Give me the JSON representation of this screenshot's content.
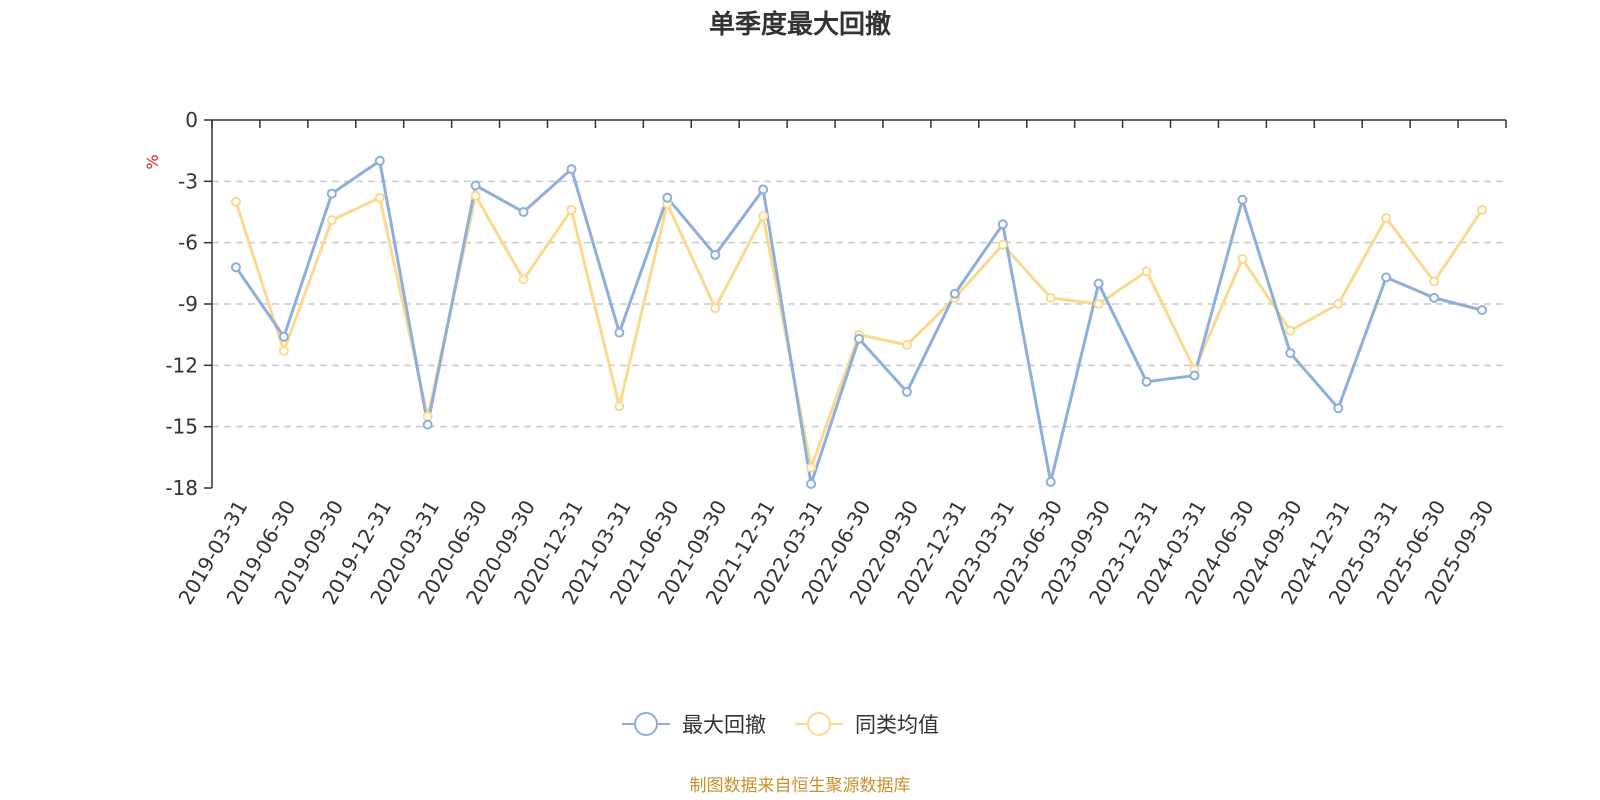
{
  "chart_data": {
    "type": "line",
    "title": "单季度最大回撤",
    "ylabel": "%",
    "ylim": [
      -18,
      0
    ],
    "yticks": [
      0,
      -3,
      -6,
      -9,
      -12,
      -15,
      -18
    ],
    "grid": true,
    "legend_position": "bottom-center",
    "categories": [
      "2019-03-31",
      "2019-06-30",
      "2019-09-30",
      "2019-12-31",
      "2020-03-31",
      "2020-06-30",
      "2020-09-30",
      "2020-12-31",
      "2021-03-31",
      "2021-06-30",
      "2021-09-30",
      "2021-12-31",
      "2022-03-31",
      "2022-06-30",
      "2022-09-30",
      "2022-12-31",
      "2023-03-31",
      "2023-06-30",
      "2023-09-30",
      "2023-12-31",
      "2024-03-31",
      "2024-06-30",
      "2024-09-30",
      "2024-12-31",
      "2025-03-31",
      "2025-06-30",
      "2025-09-30"
    ],
    "series": [
      {
        "name": "最大回撤",
        "color": "#8eaedb",
        "values": [
          -7.2,
          -10.6,
          -3.6,
          -2.0,
          -14.9,
          -3.2,
          -4.5,
          -2.4,
          -10.4,
          -3.8,
          -6.6,
          -3.4,
          -17.8,
          -10.7,
          -13.3,
          -8.5,
          -5.1,
          -17.7,
          -8.0,
          -12.8,
          -12.5,
          -3.9,
          -11.4,
          -14.1,
          -7.7,
          -8.7,
          -9.3
        ]
      },
      {
        "name": "同类均值",
        "color": "#fbd98f",
        "values": [
          -4.0,
          -11.3,
          -4.9,
          -3.8,
          -14.5,
          -3.7,
          -7.8,
          -4.4,
          -14.0,
          -4.1,
          -9.2,
          -4.7,
          -17.0,
          -10.5,
          -11.0,
          -8.7,
          -6.1,
          -8.7,
          -9.0,
          -7.4,
          -12.2,
          -6.8,
          -10.3,
          -9.0,
          -4.8,
          -7.9,
          -4.4
        ]
      }
    ]
  },
  "footer": {
    "source_text": "制图数据来自恒生聚源数据库",
    "source_color": "#c8912c"
  },
  "styles": {
    "unit_color": "#e02020",
    "axis_color": "#333333",
    "grid_color": "#cccccc"
  }
}
